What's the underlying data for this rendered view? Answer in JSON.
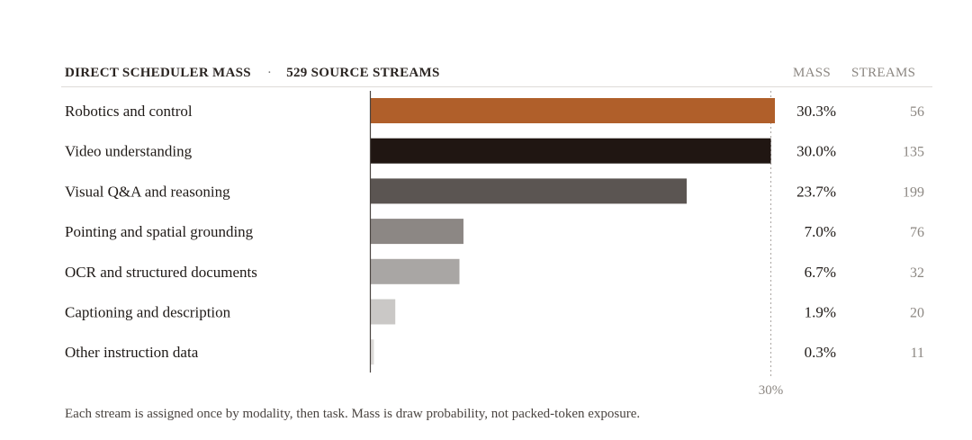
{
  "header": {
    "title": "DIRECT SCHEDULER MASS",
    "separator": "·",
    "subtitle": "529 SOURCE STREAMS",
    "col_mass": "MASS",
    "col_streams": "STREAMS"
  },
  "chart_data": {
    "type": "bar",
    "orientation": "horizontal",
    "title": "DIRECT SCHEDULER MASS",
    "subtitle": "529 SOURCE STREAMS",
    "categories": [
      "Robotics and control",
      "Video understanding",
      "Visual Q&A and reasoning",
      "Pointing and spatial grounding",
      "OCR and structured documents",
      "Captioning and description",
      "Other instruction data"
    ],
    "values": [
      30.3,
      30.0,
      23.7,
      7.0,
      6.7,
      1.9,
      0.3
    ],
    "value_labels": [
      "30.3%",
      "30.0%",
      "23.7%",
      "7.0%",
      "6.7%",
      "1.9%",
      "0.3%"
    ],
    "streams": [
      56,
      135,
      199,
      76,
      32,
      20,
      11
    ],
    "colors": [
      "#b05f2a",
      "#201612",
      "#5b5552",
      "#8c8784",
      "#a9a6a4",
      "#cac8c6",
      "#dcdad8"
    ],
    "xlim": [
      0,
      30.3
    ],
    "reference_line": {
      "value": 30,
      "label": "30%"
    },
    "grid": false
  },
  "footnote": "Each stream is assigned once by modality, then task. Mass is draw probability, not packed-token exposure."
}
